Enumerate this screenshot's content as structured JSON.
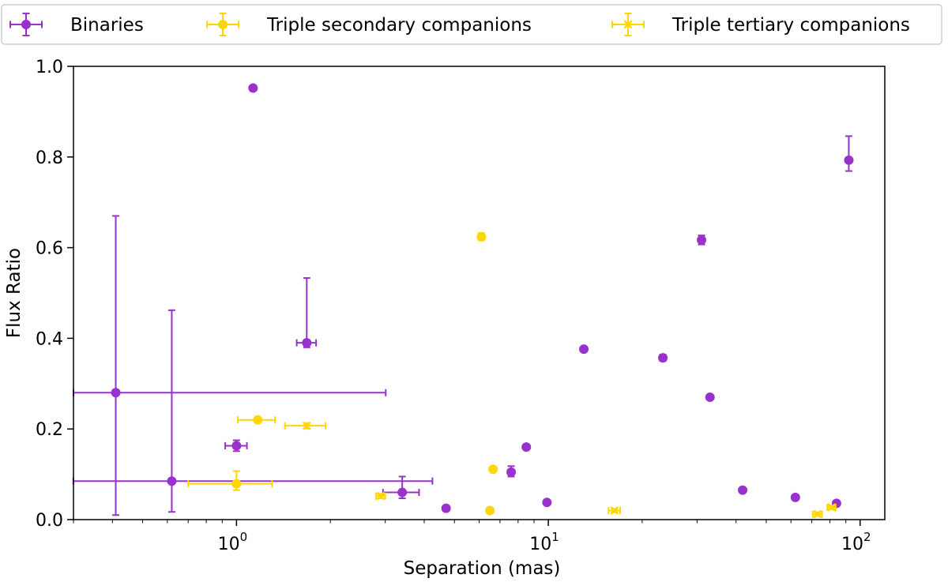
{
  "chart_data": {
    "type": "scatter",
    "xscale": "log",
    "xlabel": "Separation (mas)",
    "ylabel": "Flux Ratio",
    "xlim": [
      0.3,
      120
    ],
    "ylim": [
      0,
      1.0
    ],
    "yticks": [
      0.0,
      0.2,
      0.4,
      0.6,
      0.8,
      1.0
    ],
    "ytick_labels": [
      "0.0",
      "0.2",
      "0.4",
      "0.6",
      "0.8",
      "1.0"
    ],
    "xticks": [
      1,
      10,
      100
    ],
    "xtick_labels": [
      {
        "base": "10",
        "exp": "0"
      },
      {
        "base": "10",
        "exp": "1"
      },
      {
        "base": "10",
        "exp": "2"
      }
    ],
    "legend_position": "top",
    "series": [
      {
        "name": "Binaries",
        "color": "#9932CC",
        "marker": "circle",
        "points": [
          {
            "x": 0.41,
            "y": 0.28,
            "xerr": [
              0.11,
              2.6
            ],
            "yerr": [
              0.27,
              0.39
            ]
          },
          {
            "x": 0.62,
            "y": 0.085,
            "xerr": [
              0.33,
              3.63
            ],
            "yerr": [
              0.068,
              0.377
            ]
          },
          {
            "x": 1.0,
            "y": 0.163,
            "xerr": [
              0.08,
              0.08
            ],
            "yerr": [
              0.012,
              0.012
            ]
          },
          {
            "x": 1.13,
            "y": 0.952,
            "xerr": [
              0,
              0
            ],
            "yerr": [
              0,
              0
            ]
          },
          {
            "x": 1.68,
            "y": 0.39,
            "xerr": [
              0.12,
              0.12
            ],
            "yerr": [
              0.01,
              0.143
            ]
          },
          {
            "x": 3.4,
            "y": 0.06,
            "xerr": [
              0.45,
              0.45
            ],
            "yerr": [
              0.013,
              0.035
            ]
          },
          {
            "x": 4.7,
            "y": 0.025,
            "xerr": [
              0,
              0
            ],
            "yerr": [
              0,
              0
            ]
          },
          {
            "x": 7.6,
            "y": 0.105,
            "xerr": [
              0,
              0
            ],
            "yerr": [
              0.01,
              0.013
            ]
          },
          {
            "x": 8.5,
            "y": 0.16,
            "xerr": [
              0,
              0
            ],
            "yerr": [
              0,
              0
            ]
          },
          {
            "x": 9.9,
            "y": 0.038,
            "xerr": [
              0,
              0
            ],
            "yerr": [
              0,
              0
            ]
          },
          {
            "x": 13.0,
            "y": 0.376,
            "xerr": [
              0,
              0
            ],
            "yerr": [
              0,
              0
            ]
          },
          {
            "x": 23.3,
            "y": 0.357,
            "xerr": [
              0,
              0
            ],
            "yerr": [
              0.007,
              0.007
            ]
          },
          {
            "x": 31.0,
            "y": 0.617,
            "xerr": [
              0,
              0
            ],
            "yerr": [
              0.01,
              0.01
            ]
          },
          {
            "x": 33.0,
            "y": 0.27,
            "xerr": [
              0,
              0
            ],
            "yerr": [
              0,
              0
            ]
          },
          {
            "x": 42.0,
            "y": 0.065,
            "xerr": [
              0,
              0
            ],
            "yerr": [
              0,
              0
            ]
          },
          {
            "x": 62.0,
            "y": 0.049,
            "xerr": [
              0,
              0
            ],
            "yerr": [
              0,
              0
            ]
          },
          {
            "x": 84.0,
            "y": 0.036,
            "xerr": [
              0,
              0
            ],
            "yerr": [
              0,
              0
            ]
          },
          {
            "x": 92.0,
            "y": 0.793,
            "xerr": [
              0,
              0
            ],
            "yerr": [
              0.024,
              0.053
            ]
          }
        ]
      },
      {
        "name": "Triple secondary companions",
        "color": "#FFD700",
        "marker": "circle",
        "points": [
          {
            "x": 1.0,
            "y": 0.079,
            "xerr": [
              0.3,
              0.3
            ],
            "yerr": [
              0.014,
              0.028
            ]
          },
          {
            "x": 1.17,
            "y": 0.22,
            "xerr": [
              0.16,
              0.16
            ],
            "yerr": [
              0,
              0
            ]
          },
          {
            "x": 6.1,
            "y": 0.624,
            "xerr": [
              0,
              0
            ],
            "yerr": [
              0.008,
              0.008
            ]
          },
          {
            "x": 6.5,
            "y": 0.02,
            "xerr": [
              0,
              0
            ],
            "yerr": [
              0,
              0
            ]
          },
          {
            "x": 6.65,
            "y": 0.111,
            "xerr": [
              0,
              0
            ],
            "yerr": [
              0,
              0
            ]
          }
        ]
      },
      {
        "name": "Triple tertiary companions",
        "color": "#FFD700",
        "marker": "x",
        "points": [
          {
            "x": 1.68,
            "y": 0.207,
            "xerr": [
              0.25,
              0.25
            ],
            "yerr": [
              0.006,
              0.006
            ]
          },
          {
            "x": 2.9,
            "y": 0.052,
            "xerr": [
              0.1,
              0.1
            ],
            "yerr": [
              0.005,
              0.005
            ]
          },
          {
            "x": 16.3,
            "y": 0.02,
            "xerr": [
              0.7,
              0.7
            ],
            "yerr": [
              0.004,
              0.004
            ]
          },
          {
            "x": 73.0,
            "y": 0.012,
            "xerr": [
              2.5,
              2.5
            ],
            "yerr": [
              0.004,
              0.004
            ]
          },
          {
            "x": 81.0,
            "y": 0.027,
            "xerr": [
              2.5,
              2.5
            ],
            "yerr": [
              0.004,
              0.004
            ]
          }
        ]
      }
    ]
  }
}
